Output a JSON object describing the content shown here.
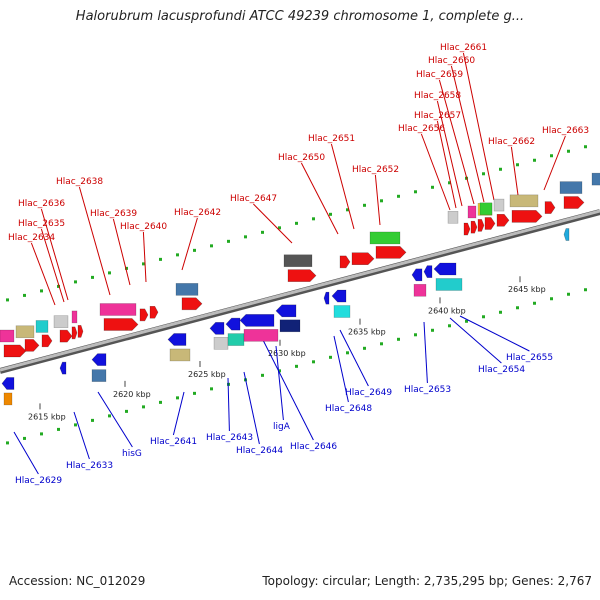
{
  "title": "Halorubrum lacusprofundi ATCC 49239 chromosome 1, complete g...",
  "footer": {
    "accession": "Accession: NC_012029",
    "summary": "Topology: circular; Length: 2,735,295 bp; Genes: 2,767"
  },
  "colors": {
    "forward_gene": "#ee1111",
    "reverse_gene": "#1111dd",
    "label_top": "#cc0000",
    "label_bottom": "#0000cc",
    "backbone": "#888888"
  },
  "ticks": [
    {
      "label": "2615 kbp",
      "pos": 2615
    },
    {
      "label": "2620 kbp",
      "pos": 2620
    },
    {
      "label": "2625 kbp",
      "pos": 2625
    },
    {
      "label": "2630 kbp",
      "pos": 2630
    },
    {
      "label": "2635 kbp",
      "pos": 2635
    },
    {
      "label": "2640 kbp",
      "pos": 2640
    },
    {
      "label": "2645 kbp",
      "pos": 2645
    }
  ],
  "labels_top": [
    "Hlac_2634",
    "Hlac_2635",
    "Hlac_2636",
    "Hlac_2638",
    "Hlac_2639",
    "Hlac_2640",
    "Hlac_2642",
    "Hlac_2647",
    "Hlac_2650",
    "Hlac_2651",
    "Hlac_2652",
    "Hlac_2656",
    "Hlac_2657",
    "Hlac_2658",
    "Hlac_2659",
    "Hlac_2660",
    "Hlac_2661",
    "Hlac_2662",
    "Hlac_2663"
  ],
  "labels_bottom": [
    "Hlac_2629",
    "Hlac_2633",
    "hisG",
    "Hlac_2641",
    "Hlac_2643",
    "Hlac_2644",
    "ligA",
    "Hlac_2646",
    "Hlac_2648",
    "Hlac_2649",
    "Hlac_2653",
    "Hlac_2654",
    "Hlac_2655"
  ]
}
